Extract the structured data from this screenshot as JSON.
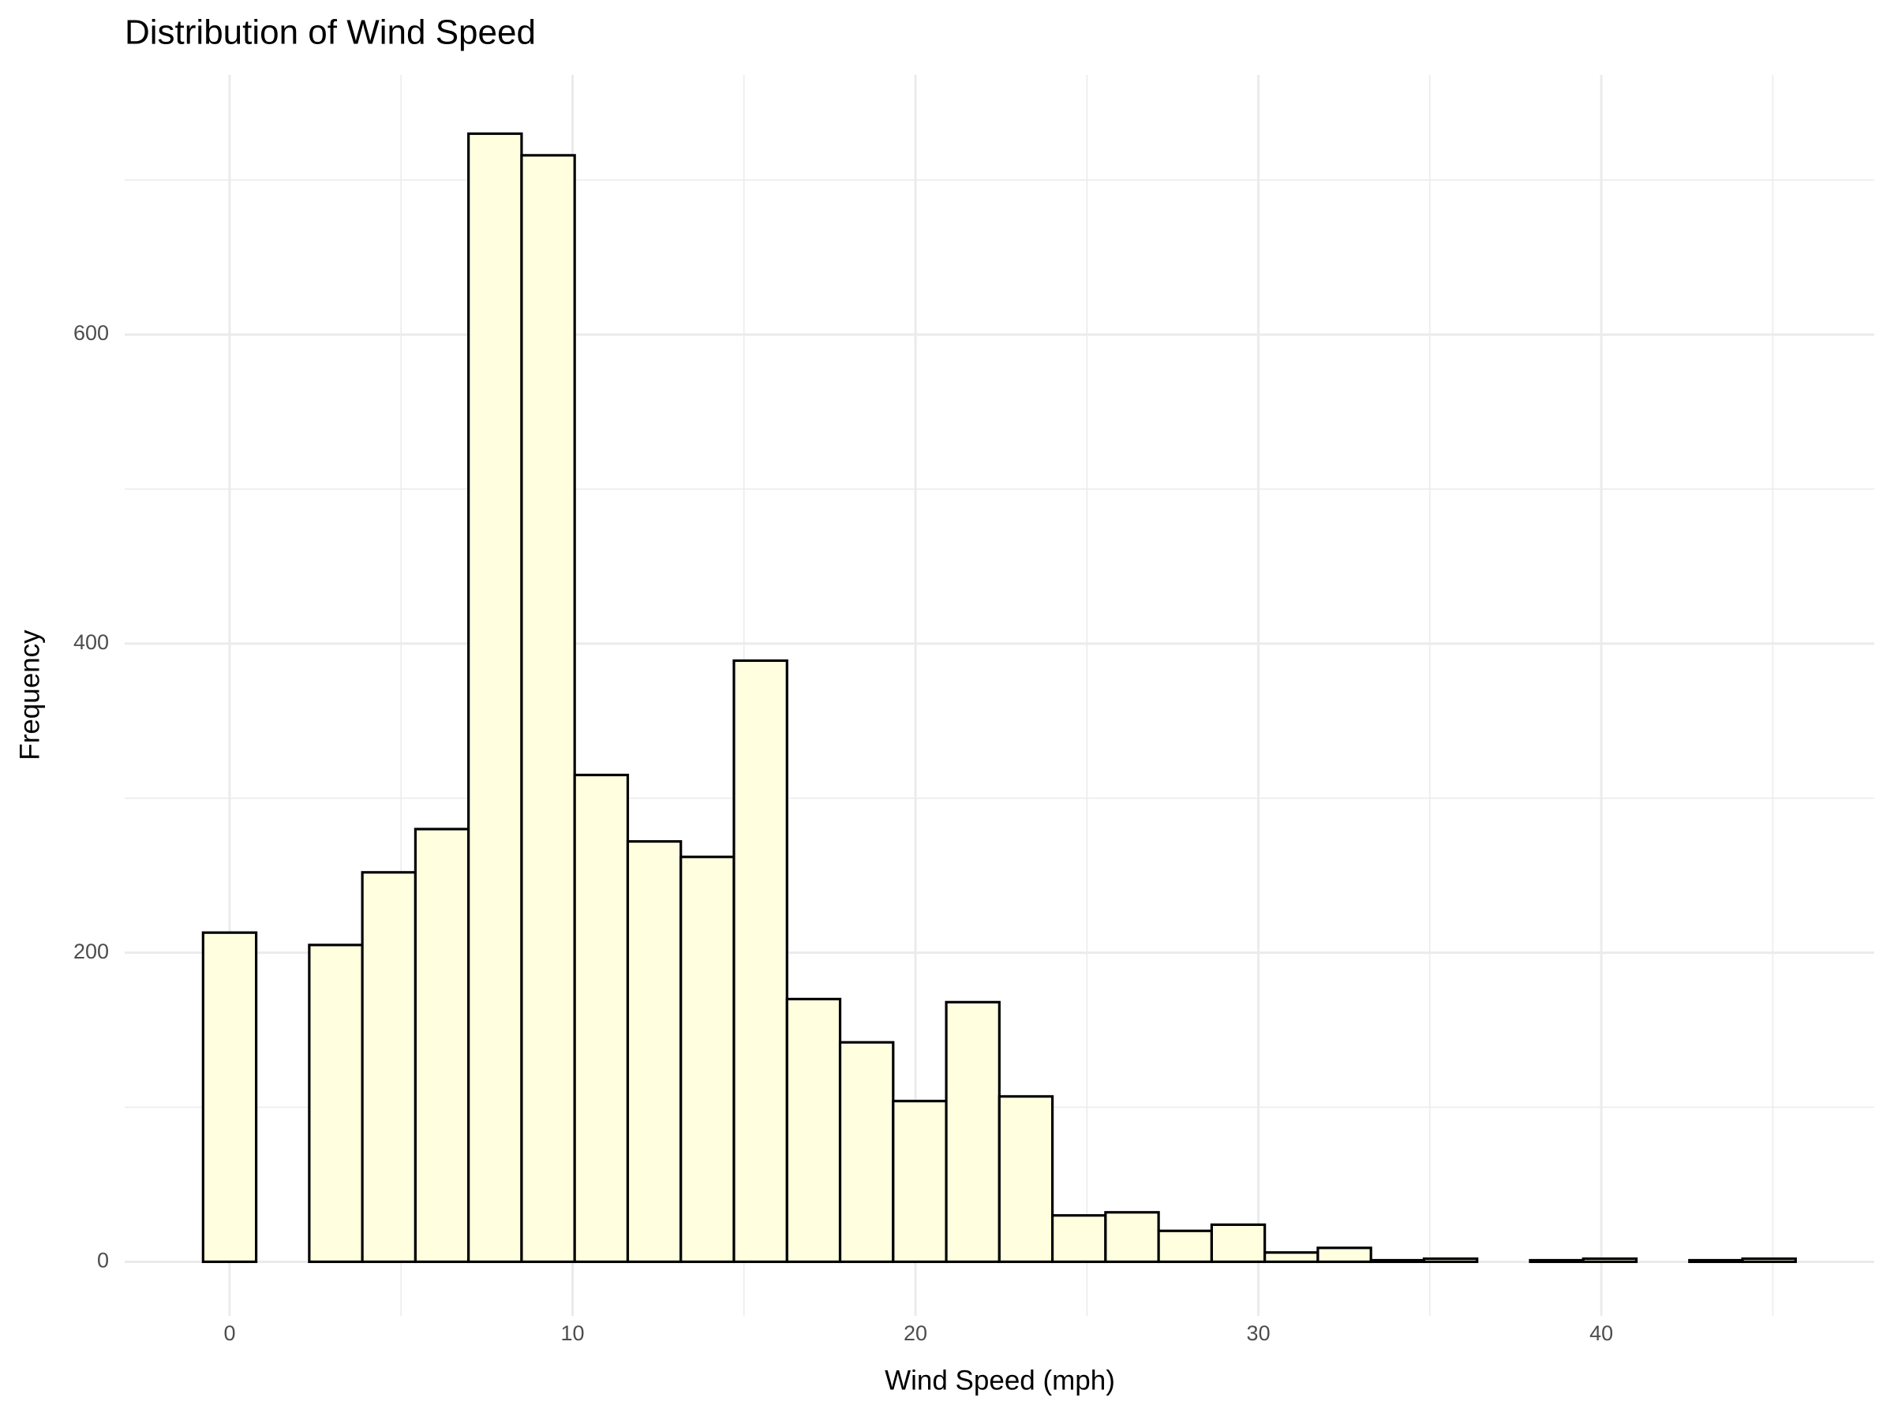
{
  "chart_data": {
    "type": "histogram",
    "title": "Distribution of Wind Speed",
    "x_label": "Wind Speed (mph)",
    "y_label": "Frequency",
    "bins": [
      -0.774,
      0.774,
      2.322,
      3.87,
      5.418,
      6.966,
      8.514,
      10.062,
      11.61,
      13.158,
      14.706,
      16.254,
      17.802,
      19.35,
      20.898,
      22.446,
      23.994,
      25.542,
      27.09,
      28.638,
      30.186,
      31.734,
      33.282,
      34.83,
      36.378,
      37.926,
      39.474,
      41.022,
      42.57,
      44.118,
      45.666
    ],
    "values": [
      213,
      0,
      205,
      252,
      280,
      730,
      716,
      315,
      272,
      262,
      389,
      170,
      142,
      104,
      168,
      107,
      30,
      32,
      20,
      24,
      6,
      9,
      1,
      2,
      0,
      1,
      2,
      0,
      1,
      2
    ],
    "color": "#ffffe0",
    "edge_color": "#000000",
    "xlim": [
      -3.06,
      47.96
    ],
    "xticks": [
      0,
      10,
      20,
      30,
      40
    ],
    "ylim": [
      -35,
      768
    ],
    "yticks": [
      0,
      200,
      400,
      600
    ],
    "grid": true
  }
}
